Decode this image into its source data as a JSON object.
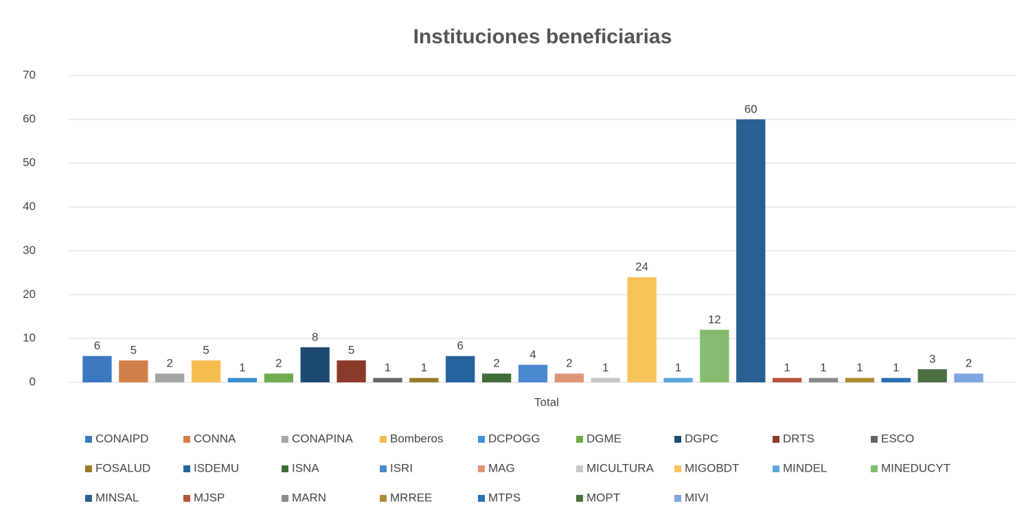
{
  "chart_data": {
    "type": "bar",
    "title": "Instituciones beneficiarias",
    "categories": [
      "Total"
    ],
    "ylim": [
      0,
      70
    ],
    "yticks": [
      0,
      10,
      20,
      30,
      40,
      50,
      60,
      70
    ],
    "grid": true,
    "legend": "bottom",
    "series": [
      {
        "name": "CONAIPD",
        "color": "#3c78c0",
        "values": [
          6
        ]
      },
      {
        "name": "CONNA",
        "color": "#d2804a",
        "values": [
          5
        ]
      },
      {
        "name": "CONAPINA",
        "color": "#a5a5a5",
        "values": [
          2
        ]
      },
      {
        "name": "Bomberos",
        "color": "#f5bd4f",
        "values": [
          5
        ]
      },
      {
        "name": "DCPOGG",
        "color": "#3f8fd6",
        "values": [
          1
        ]
      },
      {
        "name": "DGME",
        "color": "#6fac4f",
        "values": [
          2
        ]
      },
      {
        "name": "DGPC",
        "color": "#1e4a72",
        "values": [
          8
        ]
      },
      {
        "name": "DRTS",
        "color": "#8a3a28",
        "values": [
          5
        ]
      },
      {
        "name": "ESCO",
        "color": "#666666",
        "values": [
          1
        ]
      },
      {
        "name": "FOSALUD",
        "color": "#9c7a2c",
        "values": [
          1
        ]
      },
      {
        "name": "ISDEMU",
        "color": "#25639e",
        "values": [
          6
        ]
      },
      {
        "name": "ISNA",
        "color": "#3f6b37",
        "values": [
          2
        ]
      },
      {
        "name": "ISRI",
        "color": "#4a88d0",
        "values": [
          4
        ]
      },
      {
        "name": "MAG",
        "color": "#e0957a",
        "values": [
          2
        ]
      },
      {
        "name": "MICULTURA",
        "color": "#c8c8c8",
        "values": [
          1
        ]
      },
      {
        "name": "MIGOBDT",
        "color": "#f7c45c",
        "values": [
          24
        ]
      },
      {
        "name": "MINDEL",
        "color": "#5aa7e0",
        "values": [
          1
        ]
      },
      {
        "name": "MINEDUCYT",
        "color": "#84bc70",
        "values": [
          12
        ]
      },
      {
        "name": "MINSAL",
        "color": "#2a5f94",
        "values": [
          60
        ]
      },
      {
        "name": "MJSP",
        "color": "#b5553a",
        "values": [
          1
        ]
      },
      {
        "name": "MARN",
        "color": "#8a8a8a",
        "values": [
          1
        ]
      },
      {
        "name": "MRREE",
        "color": "#b08a30",
        "values": [
          1
        ]
      },
      {
        "name": "MTPS",
        "color": "#2770b8",
        "values": [
          1
        ]
      },
      {
        "name": "MOPT",
        "color": "#4a7040",
        "values": [
          3
        ]
      },
      {
        "name": "MIVI",
        "color": "#7ea6e0",
        "values": [
          2
        ]
      }
    ]
  }
}
